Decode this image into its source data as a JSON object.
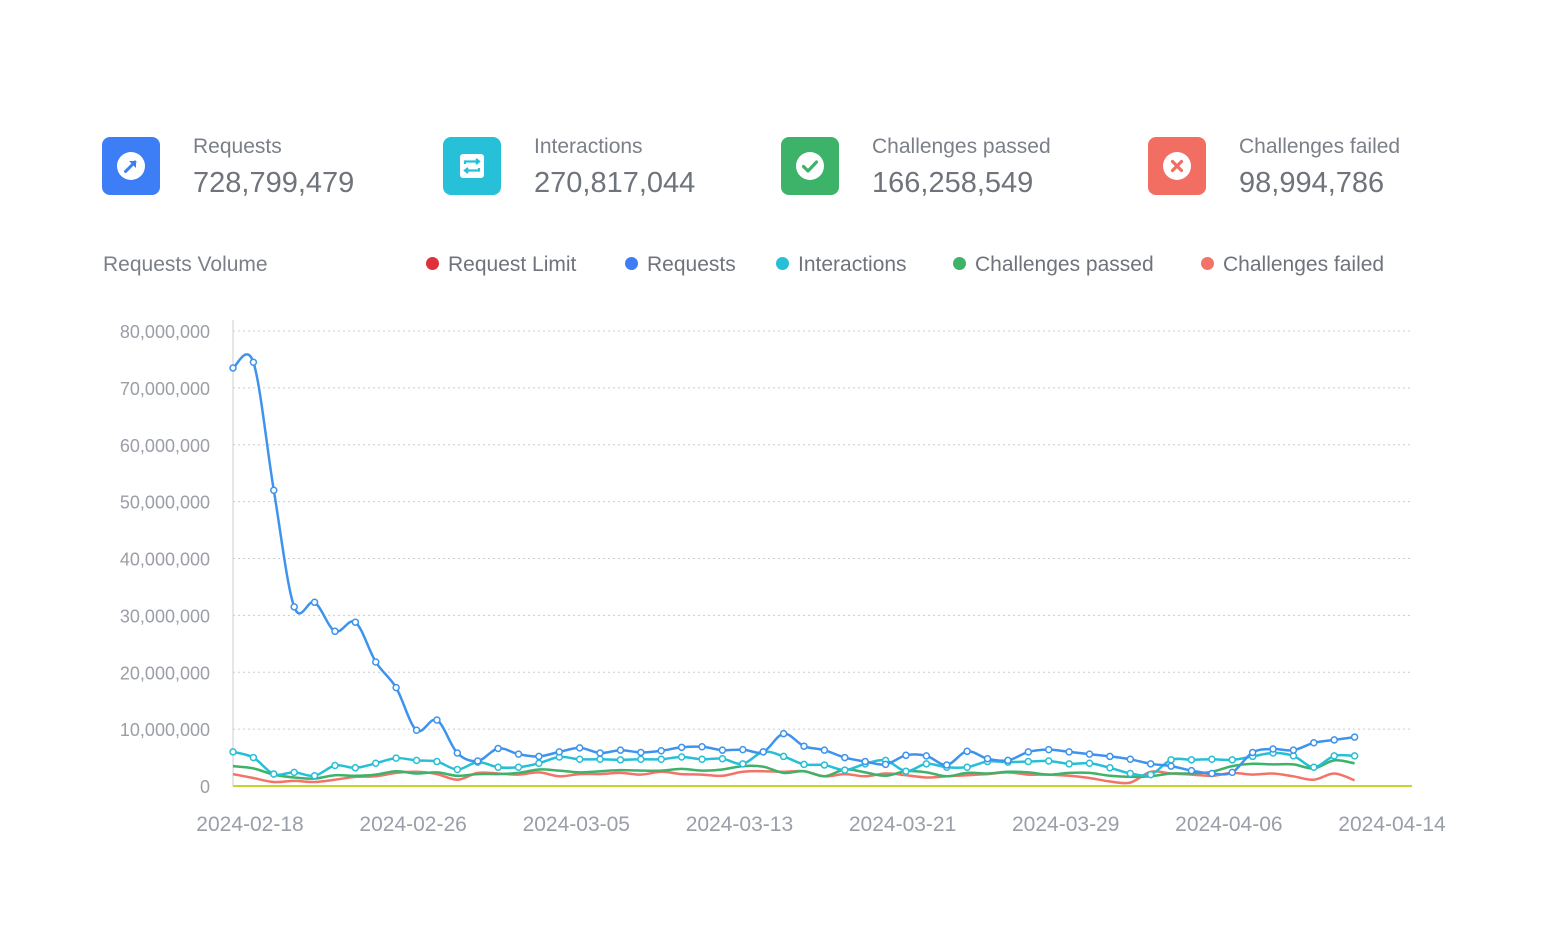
{
  "stats": [
    {
      "label": "Requests",
      "value": "728,799,479",
      "color": "#3d7df5",
      "icon": "arrow-up-right-icon"
    },
    {
      "label": "Interactions",
      "value": "270,817,044",
      "color": "#26c0d9",
      "icon": "swap-arrows-icon"
    },
    {
      "label": "Challenges passed",
      "value": "166,258,549",
      "color": "#3db36a",
      "icon": "check-icon"
    },
    {
      "label": "Challenges failed",
      "value": "98,994,786",
      "color": "#f26d62",
      "icon": "close-icon"
    }
  ],
  "chart_title": "Requests Volume",
  "legend": [
    {
      "name": "Request Limit",
      "color": "#e0303b"
    },
    {
      "name": "Requests",
      "color": "#3d7df5"
    },
    {
      "name": "Interactions",
      "color": "#26bfd6"
    },
    {
      "name": "Challenges passed",
      "color": "#3db36a"
    },
    {
      "name": "Challenges failed",
      "color": "#f27468"
    }
  ],
  "chart_data": {
    "type": "line",
    "title": "Requests Volume",
    "xlabel": "",
    "ylabel": "",
    "x_start": "2024-02-18",
    "x_end": "2024-04-14",
    "x_ticks": [
      "2024-02-18",
      "2024-02-26",
      "2024-03-05",
      "2024-03-13",
      "2024-03-21",
      "2024-03-29",
      "2024-04-06",
      "2024-04-14"
    ],
    "ylim": [
      0,
      80000000
    ],
    "y_ticks": [
      0,
      10000000,
      20000000,
      30000000,
      40000000,
      50000000,
      60000000,
      70000000,
      80000000
    ],
    "y_tick_labels": [
      "0",
      "10,000,000",
      "20,000,000",
      "30,000,000",
      "40,000,000",
      "50,000,000",
      "60,000,000",
      "70,000,000",
      "80,000,000"
    ],
    "grid": "horizontal dotted",
    "legend_position": "top",
    "series": [
      {
        "name": "Request Limit",
        "color": "#c5d52c",
        "markers": false,
        "values": [
          0,
          0,
          0,
          0,
          0,
          0,
          0,
          0,
          0,
          0,
          0,
          0,
          0,
          0,
          0,
          0,
          0,
          0,
          0,
          0,
          0,
          0,
          0,
          0,
          0,
          0,
          0,
          0,
          0,
          0,
          0,
          0,
          0,
          0,
          0,
          0,
          0,
          0,
          0,
          0,
          0,
          0,
          0,
          0,
          0,
          0,
          0,
          0,
          0,
          0,
          0,
          0,
          0,
          0,
          0,
          0,
          0
        ]
      },
      {
        "name": "Requests",
        "color": "#3d93ee",
        "markers": true,
        "values": [
          73500000,
          74500000,
          52000000,
          31500000,
          32300000,
          27200000,
          28800000,
          21800000,
          17300000,
          9800000,
          11600000,
          5800000,
          4400000,
          6600000,
          5600000,
          5200000,
          6000000,
          6700000,
          5800000,
          6300000,
          5900000,
          6200000,
          6800000,
          6900000,
          6300000,
          6400000,
          6000000,
          9200000,
          7000000,
          6300000,
          5000000,
          4300000,
          3800000,
          5400000,
          5300000,
          3700000,
          6100000,
          4800000,
          4500000,
          6000000,
          6400000,
          6000000,
          5600000,
          5200000,
          4700000,
          3900000,
          3500000,
          2700000,
          2200000,
          2400000,
          5900000,
          6500000,
          6300000,
          7600000,
          8100000,
          8600000
        ]
      },
      {
        "name": "Interactions",
        "color": "#26bfd6",
        "markers": true,
        "values": [
          6000000,
          5000000,
          2100000,
          2400000,
          1800000,
          3600000,
          3200000,
          4000000,
          4900000,
          4500000,
          4300000,
          2900000,
          4200000,
          3300000,
          3300000,
          4000000,
          5100000,
          4700000,
          4700000,
          4600000,
          4700000,
          4700000,
          5100000,
          4700000,
          4800000,
          3900000,
          6000000,
          5200000,
          3800000,
          3700000,
          2800000,
          3900000,
          4500000,
          2600000,
          3900000,
          3300000,
          3300000,
          4300000,
          4200000,
          4300000,
          4400000,
          3900000,
          4000000,
          3200000,
          2200000,
          2000000,
          4600000,
          4600000,
          4700000,
          4600000,
          5200000,
          5800000,
          5300000,
          3300000,
          5300000,
          5300000
        ]
      },
      {
        "name": "Challenges passed",
        "color": "#3db36a",
        "markers": false,
        "values": [
          3500000,
          3100000,
          2000000,
          1500000,
          1300000,
          1900000,
          1800000,
          2000000,
          2600000,
          2200000,
          2400000,
          1800000,
          2100000,
          2100000,
          2300000,
          2900000,
          2700000,
          2400000,
          2600000,
          2800000,
          2700000,
          2700000,
          3000000,
          2700000,
          2900000,
          3500000,
          3400000,
          2300000,
          2600000,
          1700000,
          2900000,
          2400000,
          1800000,
          2600000,
          2400000,
          1700000,
          2300000,
          2200000,
          2500000,
          2400000,
          2000000,
          2300000,
          2300000,
          1800000,
          1600000,
          1700000,
          2200000,
          2200000,
          2500000,
          3500000,
          3900000,
          3800000,
          3800000,
          3100000,
          4500000,
          4000000
        ]
      },
      {
        "name": "Challenges failed",
        "color": "#f27468",
        "markers": false,
        "values": [
          2100000,
          1400000,
          700000,
          900000,
          700000,
          1100000,
          1600000,
          1700000,
          2300000,
          2500000,
          2100000,
          1100000,
          2300000,
          2200000,
          2000000,
          2400000,
          1700000,
          2100000,
          2100000,
          2300000,
          2000000,
          2500000,
          2100000,
          2000000,
          1800000,
          2500000,
          2600000,
          2500000,
          2600000,
          1700000,
          2100000,
          1700000,
          2200000,
          1900000,
          1500000,
          1700000,
          1900000,
          2100000,
          2400000,
          2000000,
          2000000,
          1800000,
          1400000,
          800000,
          600000,
          2500000,
          2200000,
          2000000,
          1800000,
          2300000,
          2000000,
          2200000,
          1700000,
          1100000,
          2200000,
          1000000
        ]
      }
    ]
  }
}
